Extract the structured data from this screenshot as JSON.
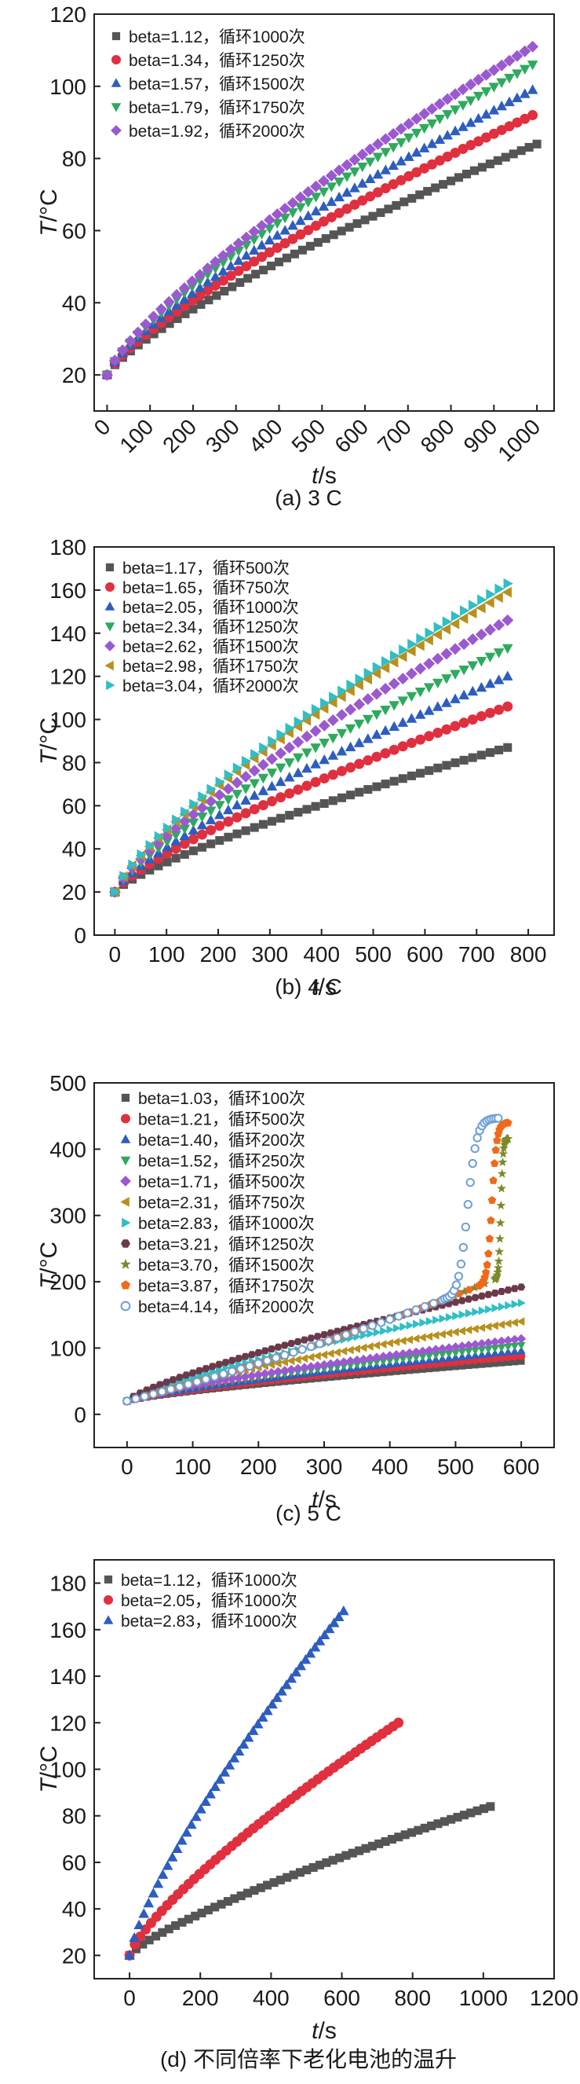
{
  "chart_data": [
    {
      "type": "scatter",
      "caption": "(a) 3 C",
      "xlabel": "t/s",
      "ylabel": "T/°C",
      "xlim": [
        -30,
        1040
      ],
      "ylim": [
        10,
        120
      ],
      "xticks": [
        0,
        100,
        200,
        300,
        400,
        500,
        600,
        700,
        800,
        900,
        1000
      ],
      "yticks": [
        20,
        40,
        60,
        80,
        100,
        120
      ],
      "xtick_rotate": true,
      "series": [
        {
          "name": "beta=1.12，循环1000次",
          "marker": "square",
          "color": "#555555",
          "final": [
            1000,
            84
          ],
          "points": 55
        },
        {
          "name": "beta=1.34，循环1250次",
          "marker": "circle",
          "color": "#e0303f",
          "final": [
            990,
            92
          ],
          "points": 55
        },
        {
          "name": "beta=1.57，循环1500次",
          "marker": "triangle-up",
          "color": "#2d5dbf",
          "final": [
            990,
            99
          ],
          "points": 55
        },
        {
          "name": "beta=1.79，循环1750次",
          "marker": "triangle-down",
          "color": "#2eaa5e",
          "final": [
            990,
            106
          ],
          "points": 55
        },
        {
          "name": "beta=1.92，循环2000次",
          "marker": "diamond",
          "color": "#9b59d0",
          "final": [
            990,
            111
          ],
          "points": 55
        }
      ]
    },
    {
      "type": "scatter",
      "caption": "(b) 4 C",
      "xlabel": "t/s",
      "ylabel": "T/°C",
      "xlim": [
        -40,
        850
      ],
      "ylim": [
        0,
        180
      ],
      "xticks": [
        0,
        100,
        200,
        300,
        400,
        500,
        600,
        700,
        800
      ],
      "yticks": [
        0,
        20,
        40,
        60,
        80,
        100,
        120,
        140,
        160,
        180
      ],
      "series": [
        {
          "name": "beta=1.17，循环500次",
          "marker": "square",
          "color": "#555555",
          "final": [
            760,
            87
          ],
          "points": 45
        },
        {
          "name": "beta=1.65，循环750次",
          "marker": "circle",
          "color": "#e0303f",
          "final": [
            760,
            106
          ],
          "points": 45
        },
        {
          "name": "beta=2.05，循环1000次",
          "marker": "triangle-up",
          "color": "#2d5dbf",
          "final": [
            760,
            120
          ],
          "points": 45
        },
        {
          "name": "beta=2.34，循环1250次",
          "marker": "triangle-down",
          "color": "#2eaa5e",
          "final": [
            760,
            133
          ],
          "points": 45
        },
        {
          "name": "beta=2.62，循环1500次",
          "marker": "diamond",
          "color": "#9b59d0",
          "final": [
            760,
            146
          ],
          "points": 45
        },
        {
          "name": "beta=2.98，循环1750次",
          "marker": "triangle-left",
          "color": "#b8901d",
          "final": [
            760,
            159
          ],
          "points": 45
        },
        {
          "name": "beta=3.04，循环2000次",
          "marker": "triangle-right",
          "color": "#2fbfc4",
          "final": [
            760,
            163
          ],
          "points": 45
        }
      ]
    },
    {
      "type": "scatter",
      "caption": "(c) 5 C",
      "xlabel": "t/s",
      "ylabel": "T/°C",
      "xlim": [
        -50,
        650
      ],
      "ylim": [
        -50,
        500
      ],
      "xticks": [
        0,
        100,
        200,
        300,
        400,
        500,
        600
      ],
      "yticks": [
        0,
        100,
        200,
        300,
        400,
        500
      ],
      "series": [
        {
          "name": "beta=1.03，循环100次",
          "marker": "square",
          "color": "#555555",
          "final": [
            600,
            80
          ],
          "points": 60
        },
        {
          "name": "beta=1.21，循环500次",
          "marker": "circle",
          "color": "#e0303f",
          "final": [
            600,
            88
          ],
          "points": 60
        },
        {
          "name": "beta=1.40，循环200次",
          "marker": "triangle-up",
          "color": "#2d5dbf",
          "final": [
            600,
            96
          ],
          "points": 60
        },
        {
          "name": "beta=1.52，循环250次",
          "marker": "triangle-down",
          "color": "#2eaa5e",
          "final": [
            600,
            104
          ],
          "points": 60
        },
        {
          "name": "beta=1.71，循环500次",
          "marker": "diamond",
          "color": "#9b59d0",
          "final": [
            600,
            114
          ],
          "points": 60
        },
        {
          "name": "beta=2.31，循环750次",
          "marker": "triangle-left",
          "color": "#b8901d",
          "final": [
            600,
            140
          ],
          "points": 60
        },
        {
          "name": "beta=2.83，循环1000次",
          "marker": "triangle-right",
          "color": "#2fbfc4",
          "final": [
            600,
            168
          ],
          "points": 60
        },
        {
          "name": "beta=3.21，循环1250次",
          "marker": "hexagon",
          "color": "#6b3a4a",
          "final": [
            600,
            192
          ],
          "points": 60
        },
        {
          "name": "beta=3.70，循环1500次",
          "marker": "star",
          "color": "#7a8a2a",
          "final": [
            580,
            416
          ],
          "runaway_at": 560,
          "points": 60
        },
        {
          "name": "beta=3.87，循环1750次",
          "marker": "pentagon",
          "color": "#f06a1a",
          "final": [
            580,
            440
          ],
          "runaway_at": 535,
          "points": 60
        },
        {
          "name": "beta=4.14，循环2000次",
          "marker": "open-circle",
          "color": "#6f9fd6",
          "final": [
            565,
            447
          ],
          "runaway_at": 480,
          "points": 60
        }
      ]
    },
    {
      "type": "scatter",
      "caption": "(d) 不同倍率下老化电池的温升",
      "xlabel": "t/s",
      "ylabel": "T/°C",
      "xlim": [
        -100,
        1200
      ],
      "ylim": [
        10,
        190
      ],
      "xticks": [
        0,
        200,
        400,
        600,
        800,
        1000,
        1200
      ],
      "yticks": [
        20,
        40,
        60,
        80,
        100,
        120,
        140,
        160,
        180
      ],
      "series": [
        {
          "name": "beta=1.12，循环1000次",
          "marker": "square",
          "color": "#555555",
          "final": [
            1020,
            84
          ],
          "points": 55
        },
        {
          "name": "beta=2.05，循环1000次",
          "marker": "circle",
          "color": "#e0303f",
          "final": [
            760,
            120
          ],
          "points": 50
        },
        {
          "name": "beta=2.83，循环1000次",
          "marker": "triangle-up",
          "color": "#2d5dbf",
          "final": [
            605,
            168
          ],
          "points": 45
        }
      ]
    }
  ]
}
